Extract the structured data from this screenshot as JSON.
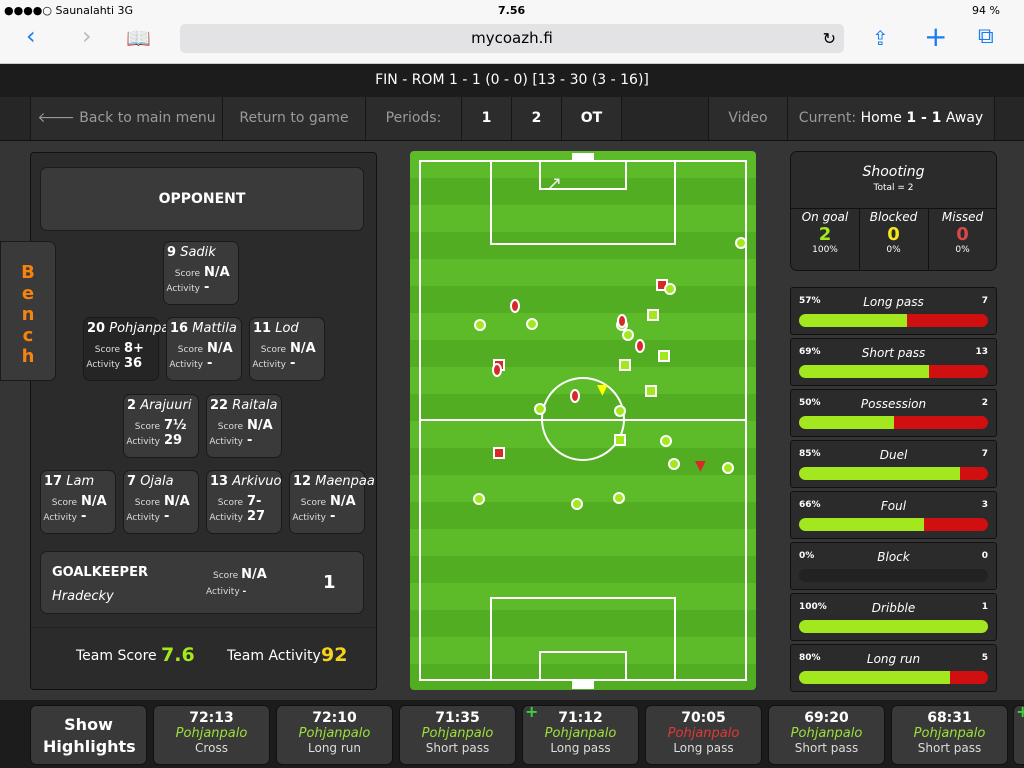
{
  "status": {
    "carrier": "●●●●○ Saunalahti  3G",
    "time": "7.56",
    "battery": "94 %"
  },
  "browser": {
    "url": "mycoazh.fi",
    "icons": [
      "back-icon",
      "forward-icon",
      "bookmarks-icon",
      "reload-icon",
      "share-icon",
      "add-icon",
      "tabs-icon"
    ]
  },
  "title": "FIN - ROM 1 - 1 (0 - 0) [13 - 30 (3 - 16)]",
  "nav": {
    "back": "🡐 Back to main menu",
    "return": "Return to game",
    "periods": "Periods:",
    "p1": "1",
    "p2": "2",
    "ot": "OT",
    "video": "Video",
    "current_label": "Current:",
    "current_home": "Home",
    "current_score": "1 - 1",
    "current_away": "Away"
  },
  "bench": "Bench",
  "opponent": "OPPONENT",
  "players": [
    {
      "num": "9",
      "name": "Sadik",
      "score": "N/A",
      "activity": "-"
    },
    {
      "num": "20",
      "name": "Pohjanpa",
      "score": "8+",
      "activity": "36"
    },
    {
      "num": "16",
      "name": "Mattila",
      "score": "N/A",
      "activity": "-"
    },
    {
      "num": "11",
      "name": "Lod",
      "score": "N/A",
      "activity": "-"
    },
    {
      "num": "2",
      "name": "Arajuuri",
      "score": "7½",
      "activity": "29"
    },
    {
      "num": "22",
      "name": "Raitala",
      "score": "N/A",
      "activity": "-"
    },
    {
      "num": "17",
      "name": "Lam",
      "score": "N/A",
      "activity": "-"
    },
    {
      "num": "7",
      "name": "Ojala",
      "score": "N/A",
      "activity": "-"
    },
    {
      "num": "13",
      "name": "Arkivuo",
      "score": "7-",
      "activity": "27"
    },
    {
      "num": "12",
      "name": "Maenpaa",
      "score": "N/A",
      "activity": "-"
    }
  ],
  "labels": {
    "score": "Score",
    "activity": "Activity"
  },
  "goalkeeper": {
    "title": "GOALKEEPER",
    "name": "Hradecky",
    "score": "N/A",
    "activity": "-",
    "num": "1"
  },
  "team": {
    "score_label": "Team Score",
    "score": "7.6",
    "activity_label": "Team Activity",
    "activity": "92"
  },
  "shooting": {
    "title": "Shooting",
    "total": "Total = 2",
    "on_goal": {
      "label": "On goal",
      "value": "2",
      "pct": "100%"
    },
    "blocked": {
      "label": "Blocked",
      "value": "0",
      "pct": "0%"
    },
    "missed": {
      "label": "Missed",
      "value": "0",
      "pct": "0%"
    }
  },
  "stats": [
    {
      "label": "Long pass",
      "pct": "57%",
      "count": "7",
      "success": 57
    },
    {
      "label": "Short pass",
      "pct": "69%",
      "count": "13",
      "success": 69
    },
    {
      "label": "Possession",
      "pct": "50%",
      "count": "2",
      "success": 50
    },
    {
      "label": "Duel",
      "pct": "85%",
      "count": "7",
      "success": 85
    },
    {
      "label": "Foul",
      "pct": "66%",
      "count": "3",
      "success": 66
    },
    {
      "label": "Block",
      "pct": "0%",
      "count": "0",
      "success": 0
    },
    {
      "label": "Dribble",
      "pct": "100%",
      "count": "1",
      "success": 100
    },
    {
      "label": "Long run",
      "pct": "80%",
      "count": "5",
      "success": 80
    }
  ],
  "colors": {
    "good": "#a3e81e",
    "bad": "#d01010",
    "orange": "#f7820e",
    "yellow": "#f5d31a"
  },
  "highlights_button": "Show Highlights",
  "events": [
    {
      "time": "72:13",
      "player": "Pohjanpalo",
      "action": "Cross",
      "ok": true,
      "plus": false
    },
    {
      "time": "72:10",
      "player": "Pohjanpalo",
      "action": "Long run",
      "ok": true,
      "plus": false
    },
    {
      "time": "71:35",
      "player": "Pohjanpalo",
      "action": "Short pass",
      "ok": true,
      "plus": false
    },
    {
      "time": "71:12",
      "player": "Pohjanpalo",
      "action": "Long pass",
      "ok": true,
      "plus": true
    },
    {
      "time": "70:05",
      "player": "Pohjanpalo",
      "action": "Long pass",
      "ok": false,
      "plus": false
    },
    {
      "time": "69:20",
      "player": "Pohjanpalo",
      "action": "Short pass",
      "ok": true,
      "plus": false
    },
    {
      "time": "68:31",
      "player": "Pohjanpalo",
      "action": "Short pass",
      "ok": true,
      "plus": false
    }
  ]
}
